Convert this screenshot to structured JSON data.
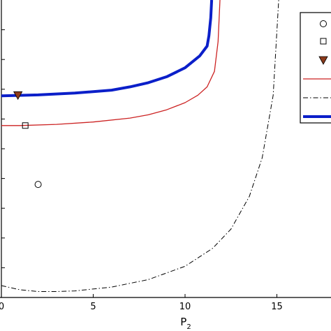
{
  "chart_data": {
    "type": "line",
    "title": "",
    "xlabel": "P",
    "xlabel_subscript": "2",
    "ylabel": "",
    "xlim": [
      0,
      18
    ],
    "ylim": [
      0,
      1
    ],
    "x_ticks": [
      0,
      5,
      10,
      15
    ],
    "x_tick_labels": [
      "0",
      "5",
      "10",
      "15"
    ],
    "grid": false,
    "legend": {
      "placement": "top-right",
      "entries": [
        {
          "marker": "circle",
          "style": "marker"
        },
        {
          "marker": "square",
          "style": "marker"
        },
        {
          "marker": "triangle-down",
          "style": "marker"
        },
        {
          "style": "thin-solid-red"
        },
        {
          "style": "dash-dot-black"
        },
        {
          "style": "thick-solid-blue"
        }
      ]
    },
    "series": [
      {
        "style": "thick-solid-blue",
        "color": "#0b1fc9",
        "x": [
          0,
          2,
          4,
          6,
          7,
          8,
          9,
          10,
          10.8,
          11.2,
          11.3,
          11.4,
          11.45
        ],
        "y": [
          0.678,
          0.681,
          0.687,
          0.697,
          0.708,
          0.722,
          0.742,
          0.772,
          0.812,
          0.845,
          0.88,
          0.94,
          1.0
        ]
      },
      {
        "style": "thin-solid-red",
        "color": "#cc2222",
        "x": [
          0,
          1,
          3,
          5,
          7,
          8,
          9,
          10,
          10.7,
          11.2,
          11.6,
          11.8,
          11.9
        ],
        "y": [
          0.578,
          0.578,
          0.582,
          0.59,
          0.603,
          0.614,
          0.631,
          0.655,
          0.68,
          0.708,
          0.76,
          0.86,
          1.0
        ]
      },
      {
        "style": "dash-dot-black",
        "color": "#000000",
        "x": [
          0,
          1,
          2,
          3,
          4,
          6,
          8,
          10,
          11.5,
          12.5,
          13.5,
          14.2,
          14.8,
          15.1
        ],
        "y": [
          0.04,
          0.026,
          0.02,
          0.02,
          0.022,
          0.035,
          0.06,
          0.105,
          0.165,
          0.23,
          0.34,
          0.47,
          0.68,
          1.0
        ]
      }
    ],
    "points": [
      {
        "marker": "triangle-down",
        "x": 0.9,
        "y": 0.68,
        "color": "#8b3a1a"
      },
      {
        "marker": "square",
        "x": 1.3,
        "y": 0.578,
        "color": "#000000"
      },
      {
        "marker": "circle",
        "x": 2.0,
        "y": 0.38,
        "color": "#000000"
      }
    ]
  }
}
